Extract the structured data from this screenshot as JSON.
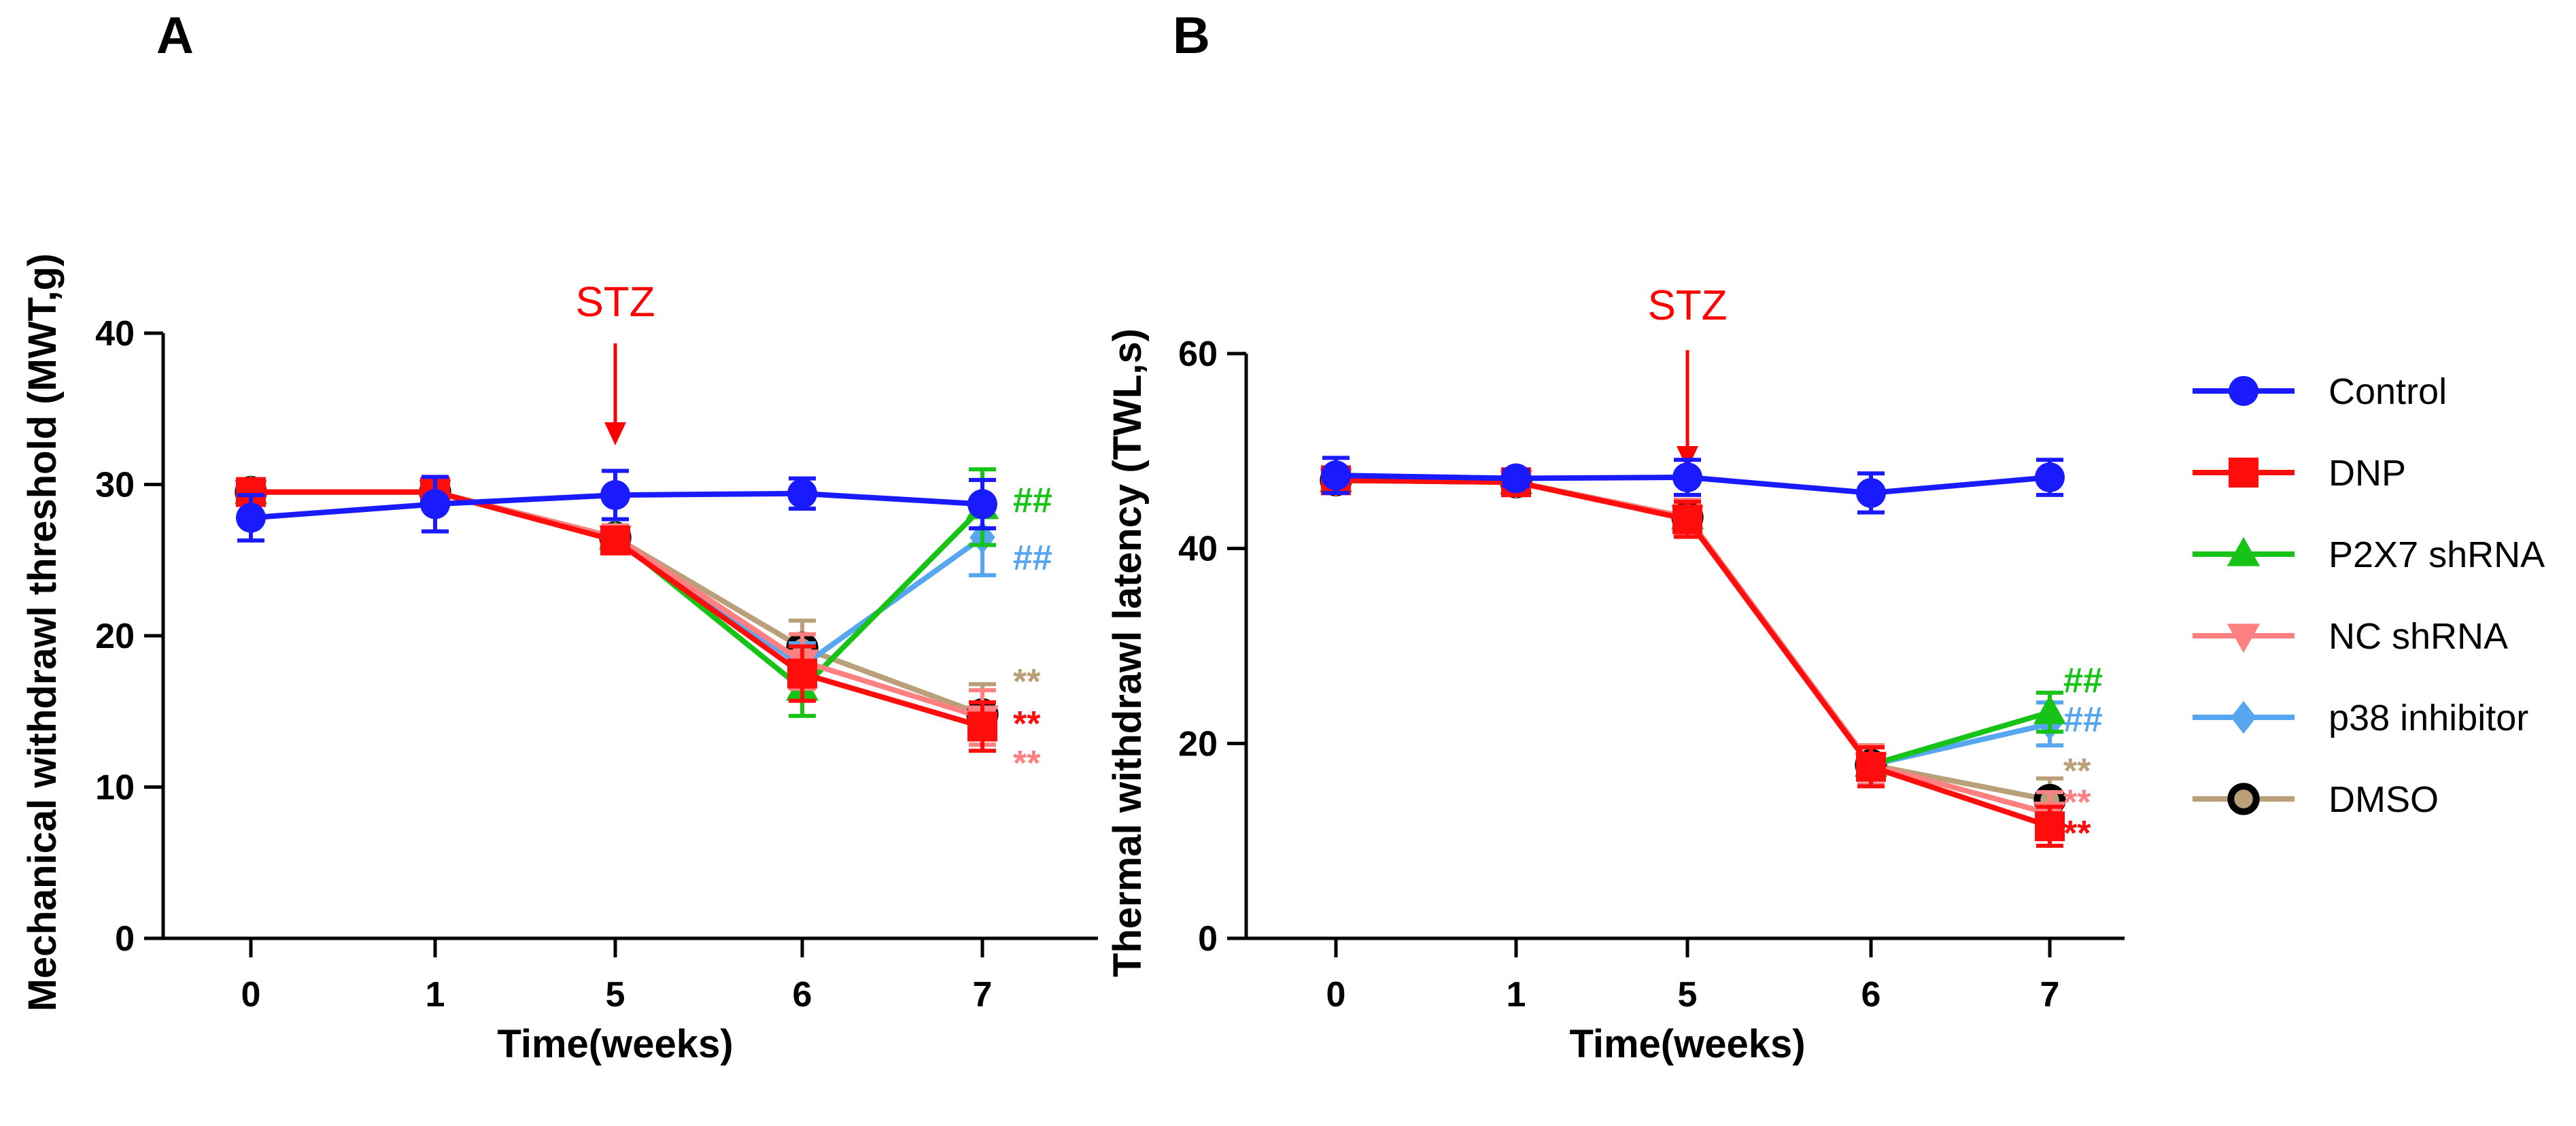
{
  "colors": {
    "control": "#1a1aff",
    "dnp": "#ff0d0d",
    "p2x7": "#17c317",
    "nc": "#ff8080",
    "p38": "#56a6f0",
    "dmso": "#b9a079",
    "axis": "#000000",
    "annotation": "#ff0000"
  },
  "legend": {
    "items": [
      {
        "label": "Control",
        "marker": "circle",
        "color": "#1a1aff"
      },
      {
        "label": "DNP",
        "marker": "square",
        "color": "#ff0d0d"
      },
      {
        "label": "P2X7 shRNA",
        "marker": "triangle-up",
        "color": "#17c317"
      },
      {
        "label": "NC shRNA",
        "marker": "triangle-down",
        "color": "#ff8080"
      },
      {
        "label": "p38 inhibitor",
        "marker": "diamond",
        "color": "#56a6f0"
      },
      {
        "label": "DMSO",
        "marker": "circle-hollow",
        "color": "#b9a079"
      }
    ]
  },
  "chart_data": [
    {
      "panel": "A",
      "type": "line",
      "title": "",
      "xlabel": "Time(weeks)",
      "ylabel": "Mechanical withdrawl threshold (MWT,g)",
      "categories": [
        "0",
        "1",
        "5",
        "6",
        "7"
      ],
      "yticks": [
        0,
        10,
        20,
        30,
        40
      ],
      "ylim": [
        0,
        40
      ],
      "annotation": {
        "text": "STZ",
        "at_category": "5",
        "arrow": true
      },
      "series": [
        {
          "name": "DMSO",
          "color": "#b9a079",
          "marker": "circle-hollow",
          "values": [
            29.5,
            29.5,
            26.5,
            19.2,
            14.8
          ],
          "errors": [
            0.5,
            0.5,
            0.8,
            1.8,
            2.0
          ]
        },
        {
          "name": "p38 inhibitor",
          "color": "#56a6f0",
          "marker": "diamond",
          "values": [
            29.5,
            29.5,
            26.5,
            18.0,
            26.5
          ],
          "errors": [
            0.5,
            0.5,
            0.8,
            1.5,
            2.5
          ]
        },
        {
          "name": "P2X7 shRNA",
          "color": "#17c317",
          "marker": "triangle-up",
          "values": [
            29.5,
            29.5,
            26.5,
            16.5,
            28.5
          ],
          "errors": [
            0.5,
            0.5,
            0.8,
            1.8,
            2.5
          ]
        },
        {
          "name": "NC shRNA",
          "color": "#ff8080",
          "marker": "triangle-down",
          "values": [
            29.5,
            29.5,
            26.5,
            18.3,
            14.6
          ],
          "errors": [
            0.5,
            0.5,
            0.8,
            1.8,
            1.8
          ]
        },
        {
          "name": "DNP",
          "color": "#ff0d0d",
          "marker": "square",
          "values": [
            29.5,
            29.5,
            26.3,
            17.5,
            14.0
          ],
          "errors": [
            0.5,
            0.5,
            0.8,
            1.8,
            1.6
          ]
        },
        {
          "name": "Control",
          "color": "#1a1aff",
          "marker": "circle",
          "values": [
            27.8,
            28.7,
            29.3,
            29.4,
            28.7
          ],
          "errors": [
            1.5,
            1.8,
            1.6,
            1.0,
            1.6
          ]
        }
      ],
      "significance": [
        {
          "text": "##",
          "color": "#17c317",
          "value": 29.0
        },
        {
          "text": "##",
          "color": "#56a6f0",
          "value": 25.2
        },
        {
          "text": "**",
          "color": "#b9a079",
          "value": 17.0
        },
        {
          "text": "**",
          "color": "#ff0d0d",
          "value": 14.2
        },
        {
          "text": "**",
          "color": "#ff8080",
          "value": 11.6
        }
      ]
    },
    {
      "panel": "B",
      "type": "line",
      "title": "",
      "xlabel": "Time(weeks)",
      "ylabel": "Thermal withdrawl latency (TWL,s)",
      "categories": [
        "0",
        "1",
        "5",
        "6",
        "7"
      ],
      "yticks": [
        0,
        20,
        40,
        60
      ],
      "ylim": [
        0,
        60
      ],
      "annotation": {
        "text": "STZ",
        "at_category": "5",
        "arrow": true
      },
      "series": [
        {
          "name": "DMSO",
          "color": "#b9a079",
          "marker": "circle-hollow",
          "values": [
            47.0,
            46.8,
            43.2,
            17.8,
            14.2
          ],
          "errors": [
            1.0,
            0.8,
            1.8,
            2.0,
            2.2
          ]
        },
        {
          "name": "p38 inhibitor",
          "color": "#56a6f0",
          "marker": "diamond",
          "values": [
            47.0,
            46.8,
            43.2,
            17.8,
            22.0
          ],
          "errors": [
            1.0,
            0.8,
            1.8,
            2.0,
            2.2
          ]
        },
        {
          "name": "P2X7 shRNA",
          "color": "#17c317",
          "marker": "triangle-up",
          "values": [
            47.0,
            46.8,
            43.2,
            17.8,
            23.2
          ],
          "errors": [
            1.0,
            0.8,
            1.8,
            2.0,
            2.0
          ]
        },
        {
          "name": "NC shRNA",
          "color": "#ff8080",
          "marker": "triangle-down",
          "values": [
            47.0,
            46.8,
            43.2,
            17.8,
            12.8
          ],
          "errors": [
            1.0,
            0.8,
            1.8,
            2.0,
            2.2
          ]
        },
        {
          "name": "DNP",
          "color": "#ff0d0d",
          "marker": "square",
          "values": [
            47.0,
            46.8,
            43.0,
            17.6,
            11.5
          ],
          "errors": [
            1.0,
            0.8,
            1.8,
            2.0,
            2.0
          ]
        },
        {
          "name": "Control",
          "color": "#1a1aff",
          "marker": "circle",
          "values": [
            47.5,
            47.2,
            47.3,
            45.7,
            47.3
          ],
          "errors": [
            1.8,
            0.8,
            1.8,
            2.0,
            1.8
          ]
        }
      ],
      "significance": [
        {
          "text": "##",
          "color": "#17c317",
          "value": 26.5
        },
        {
          "text": "##",
          "color": "#56a6f0",
          "value": 22.5
        },
        {
          "text": "**",
          "color": "#b9a079",
          "value": 17.2
        },
        {
          "text": "**",
          "color": "#ff8080",
          "value": 14.0
        },
        {
          "text": "**",
          "color": "#ff0d0d",
          "value": 10.8
        }
      ]
    }
  ]
}
